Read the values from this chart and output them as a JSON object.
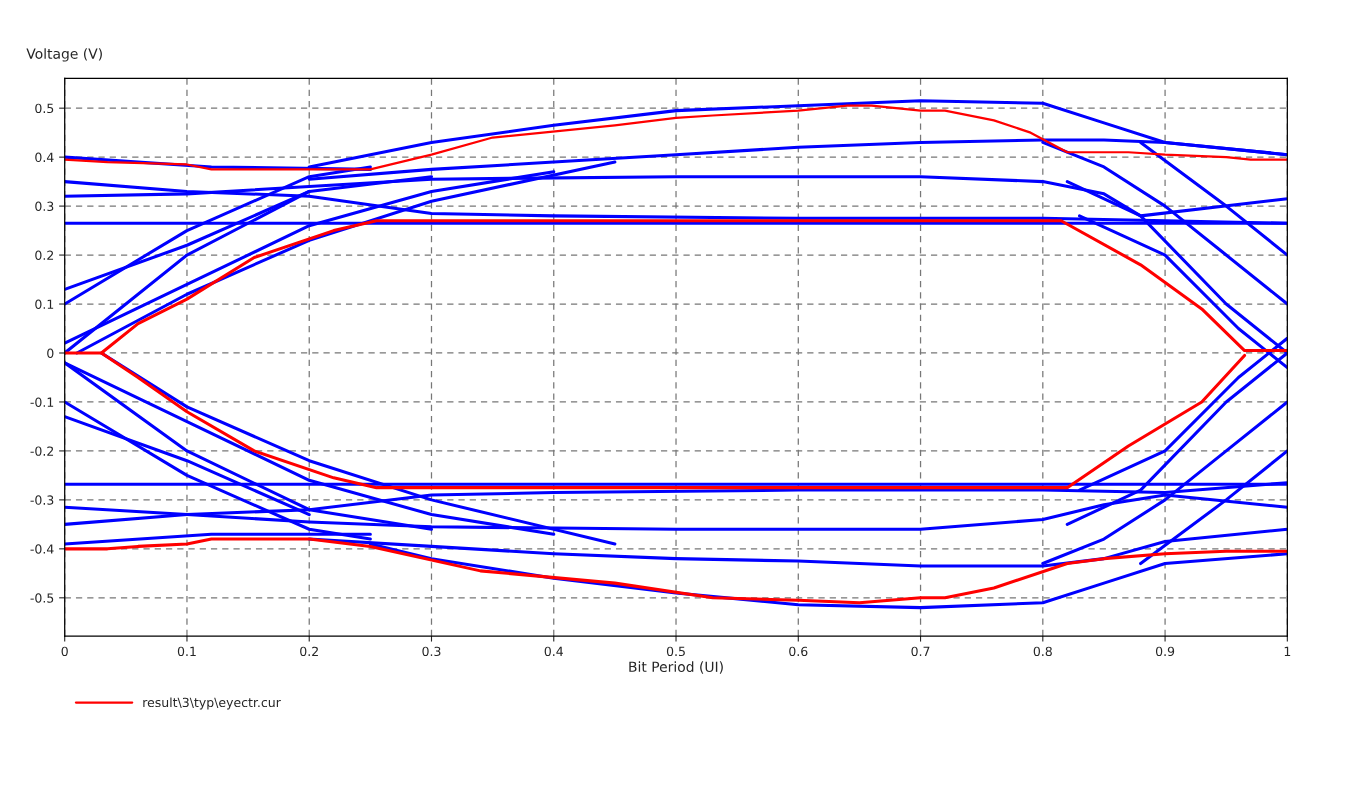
{
  "chart_data": {
    "type": "line",
    "xlabel": "Bit Period (UI)",
    "ylabel": "Voltage (V)",
    "xlim": [
      0,
      1
    ],
    "ylim": [
      -0.578,
      0.561
    ],
    "xticks": [
      0,
      0.1,
      0.2,
      0.3,
      0.4,
      0.5,
      0.6,
      0.7,
      0.8,
      0.9,
      1
    ],
    "yticks": [
      -0.5,
      -0.4,
      -0.3,
      -0.2,
      -0.1,
      0,
      0.1,
      0.2,
      0.3,
      0.4,
      0.5
    ],
    "grid": true,
    "legend": "bottom left",
    "line_style": "solid",
    "marker": "none",
    "series": [
      {
        "color": "#0000ff",
        "x": [
          0.2,
          0.3,
          0.4,
          0.5,
          0.6,
          0.7,
          0.8,
          0.85,
          0.9,
          1
        ],
        "values": [
          0.38,
          0.43,
          0.465,
          0.495,
          0.505,
          0.515,
          0.51,
          0.47,
          0.43,
          0.405
        ]
      },
      {
        "color": "#0000ff",
        "x": [
          0,
          0.12,
          0.25
        ],
        "values": [
          0.4,
          0.38,
          0.375
        ]
      },
      {
        "color": "#0000ff",
        "x": [
          0.2,
          0.3,
          0.4,
          0.5,
          0.6,
          0.7,
          0.8,
          0.85,
          0.9,
          1
        ],
        "values": [
          0.355,
          0.375,
          0.39,
          0.405,
          0.42,
          0.43,
          0.435,
          0.435,
          0.43,
          0.405
        ]
      },
      {
        "color": "#0000ff",
        "x": [
          0,
          0.1,
          0.2,
          0.3,
          0.4,
          0.6,
          0.8,
          0.9,
          1
        ],
        "values": [
          0.35,
          0.33,
          0.32,
          0.285,
          0.28,
          0.275,
          0.275,
          0.27,
          0.265
        ]
      },
      {
        "color": "#0000ff",
        "x": [
          0,
          0.1,
          0.2,
          0.3,
          0.5,
          0.7,
          0.8,
          0.85,
          0.88,
          1
        ],
        "values": [
          0.32,
          0.325,
          0.34,
          0.355,
          0.36,
          0.36,
          0.35,
          0.325,
          0.28,
          0.315
        ]
      },
      {
        "color": "#0000ff",
        "x": [
          0,
          1
        ],
        "values": [
          0.265,
          0.265
        ]
      },
      {
        "color": "#0000ff",
        "x": [
          0,
          0.1,
          0.2,
          0.3
        ],
        "values": [
          0.0,
          0.2,
          0.33,
          0.36
        ]
      },
      {
        "color": "#0000ff",
        "x": [
          0,
          0.1,
          0.2,
          0.25
        ],
        "values": [
          0.1,
          0.25,
          0.36,
          0.38
        ]
      },
      {
        "color": "#0000ff",
        "x": [
          0,
          0.1,
          0.2,
          0.3,
          0.4
        ],
        "values": [
          0.02,
          0.14,
          0.26,
          0.33,
          0.37
        ]
      },
      {
        "color": "#0000ff",
        "x": [
          0,
          0.1,
          0.2
        ],
        "values": [
          0.13,
          0.22,
          0.33
        ]
      },
      {
        "color": "#0000ff",
        "x": [
          0.01,
          0.1,
          0.2,
          0.3,
          0.45
        ],
        "values": [
          0.0,
          0.12,
          0.23,
          0.31,
          0.39
        ]
      },
      {
        "color": "#0000ff",
        "x": [
          0.8,
          0.85,
          0.9,
          0.95,
          1
        ],
        "values": [
          0.43,
          0.38,
          0.3,
          0.2,
          0.1
        ]
      },
      {
        "color": "#0000ff",
        "x": [
          0.82,
          0.88,
          0.95,
          1
        ],
        "values": [
          0.35,
          0.28,
          0.1,
          0.0
        ]
      },
      {
        "color": "#0000ff",
        "x": [
          0.83,
          0.9,
          0.96,
          1
        ],
        "values": [
          0.28,
          0.2,
          0.05,
          -0.03
        ]
      },
      {
        "color": "#0000ff",
        "x": [
          0.88,
          0.95,
          1
        ],
        "values": [
          0.43,
          0.3,
          0.2
        ]
      },
      {
        "color": "#0000ff",
        "x": [
          0.25,
          0.3,
          0.4,
          0.5,
          0.6,
          0.7,
          0.8,
          0.85,
          0.9,
          1
        ],
        "values": [
          -0.39,
          -0.42,
          -0.46,
          -0.49,
          -0.514,
          -0.52,
          -0.51,
          -0.47,
          -0.43,
          -0.41
        ]
      },
      {
        "color": "#0000ff",
        "x": [
          0,
          0.12,
          0.25
        ],
        "values": [
          -0.39,
          -0.37,
          -0.37
        ]
      },
      {
        "color": "#0000ff",
        "x": [
          0.2,
          0.3,
          0.4,
          0.5,
          0.6,
          0.7,
          0.8,
          0.85,
          0.9,
          1
        ],
        "values": [
          -0.38,
          -0.395,
          -0.41,
          -0.42,
          -0.425,
          -0.435,
          -0.435,
          -0.42,
          -0.385,
          -0.36
        ]
      },
      {
        "color": "#0000ff",
        "x": [
          0,
          0.1,
          0.2,
          0.3,
          0.4,
          0.6,
          0.8,
          0.9,
          1
        ],
        "values": [
          -0.35,
          -0.33,
          -0.32,
          -0.29,
          -0.285,
          -0.28,
          -0.28,
          -0.285,
          -0.265
        ]
      },
      {
        "color": "#0000ff",
        "x": [
          0,
          0.1,
          0.2,
          0.3,
          0.5,
          0.7,
          0.8,
          0.85,
          0.9,
          1
        ],
        "values": [
          -0.315,
          -0.33,
          -0.345,
          -0.355,
          -0.36,
          -0.36,
          -0.34,
          -0.31,
          -0.29,
          -0.315
        ]
      },
      {
        "color": "#0000ff",
        "x": [
          0,
          1
        ],
        "values": [
          -0.268,
          -0.268
        ]
      },
      {
        "color": "#0000ff",
        "x": [
          0,
          0.1,
          0.2,
          0.3
        ],
        "values": [
          -0.02,
          -0.2,
          -0.32,
          -0.36
        ]
      },
      {
        "color": "#0000ff",
        "x": [
          0,
          0.1,
          0.2,
          0.25
        ],
        "values": [
          -0.1,
          -0.25,
          -0.36,
          -0.38
        ]
      },
      {
        "color": "#0000ff",
        "x": [
          0,
          0.1,
          0.2,
          0.3,
          0.4
        ],
        "values": [
          -0.02,
          -0.14,
          -0.26,
          -0.33,
          -0.37
        ]
      },
      {
        "color": "#0000ff",
        "x": [
          0,
          0.1,
          0.2
        ],
        "values": [
          -0.13,
          -0.22,
          -0.33
        ]
      },
      {
        "color": "#0000ff",
        "x": [
          0.03,
          0.1,
          0.2,
          0.3,
          0.45
        ],
        "values": [
          0.0,
          -0.11,
          -0.22,
          -0.3,
          -0.39
        ]
      },
      {
        "color": "#0000ff",
        "x": [
          0.8,
          0.85,
          0.9,
          0.95,
          1
        ],
        "values": [
          -0.43,
          -0.38,
          -0.3,
          -0.2,
          -0.1
        ]
      },
      {
        "color": "#0000ff",
        "x": [
          0.82,
          0.88,
          0.95,
          1
        ],
        "values": [
          -0.35,
          -0.28,
          -0.1,
          0.0
        ]
      },
      {
        "color": "#0000ff",
        "x": [
          0.83,
          0.9,
          0.96,
          1
        ],
        "values": [
          -0.28,
          -0.2,
          -0.05,
          0.03
        ]
      },
      {
        "color": "#0000ff",
        "x": [
          0.88,
          0.95,
          1
        ],
        "values": [
          -0.43,
          -0.3,
          -0.2
        ]
      },
      {
        "name": "result\\3\\typ\\eyectr.cur",
        "color": "#ff0000",
        "x": [
          0,
          0.035,
          0.1,
          0.12,
          0.25,
          0.3,
          0.35,
          0.45,
          0.5,
          0.53,
          0.6,
          0.64,
          0.66,
          0.7,
          0.72,
          0.76,
          0.79,
          0.82,
          0.87,
          0.9,
          0.95,
          0.97,
          1
        ],
        "values": [
          0.395,
          0.39,
          0.385,
          0.375,
          0.375,
          0.405,
          0.44,
          0.465,
          0.48,
          0.485,
          0.495,
          0.505,
          0.505,
          0.495,
          0.495,
          0.475,
          0.45,
          0.41,
          0.41,
          0.405,
          0.4,
          0.395,
          0.395
        ]
      },
      {
        "color": "#ff0000",
        "x": [
          0,
          0.03,
          0.06,
          0.1,
          0.155,
          0.22,
          0.255,
          0.815,
          0.88,
          0.93,
          0.965,
          1
        ],
        "values": [
          0,
          0,
          0.06,
          0.11,
          0.195,
          0.25,
          0.27,
          0.27,
          0.18,
          0.09,
          0.005,
          0.005
        ]
      },
      {
        "color": "#ff0000",
        "x": [
          0.03,
          0.06,
          0.1,
          0.155,
          0.22,
          0.255,
          0.82,
          0.87,
          0.93,
          0.965
        ],
        "values": [
          0,
          -0.05,
          -0.12,
          -0.2,
          -0.255,
          -0.275,
          -0.275,
          -0.19,
          -0.1,
          -0.005
        ]
      },
      {
        "color": "#ff0000",
        "x": [
          0,
          0.035,
          0.06,
          0.1,
          0.12,
          0.2,
          0.25,
          0.34,
          0.45,
          0.53,
          0.6,
          0.65,
          0.7,
          0.72,
          0.76,
          0.82,
          0.85,
          0.9,
          0.95,
          1
        ],
        "values": [
          -0.4,
          -0.4,
          -0.395,
          -0.39,
          -0.38,
          -0.38,
          -0.395,
          -0.445,
          -0.47,
          -0.5,
          -0.505,
          -0.51,
          -0.5,
          -0.5,
          -0.48,
          -0.43,
          -0.42,
          -0.41,
          -0.405,
          -0.405
        ]
      }
    ]
  }
}
